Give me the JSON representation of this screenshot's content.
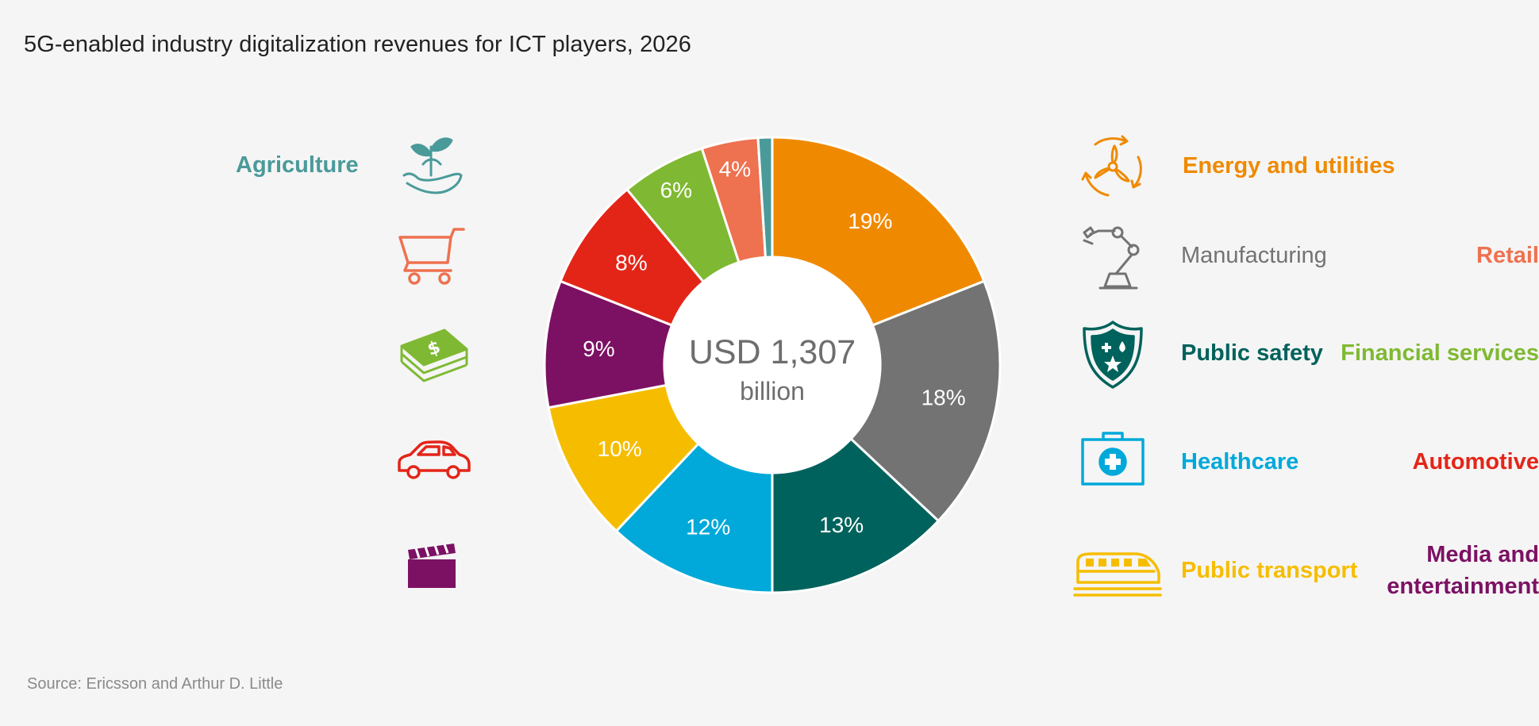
{
  "title": "5G-enabled industry digitalization revenues for ICT players, 2026",
  "source": "Source: Ericsson and Arthur D. Little",
  "center": {
    "amount": "USD 1,307",
    "unit": "billion"
  },
  "chart_data": {
    "type": "pie",
    "title": "5G-enabled industry digitalization revenues for ICT players, 2026",
    "total_label": "USD 1,307 billion",
    "slices": [
      {
        "name": "Energy and utilities",
        "value": 19,
        "label": "19%",
        "color": "#ef8a00"
      },
      {
        "name": "Manufacturing",
        "value": 18,
        "label": "18%",
        "color": "#737373"
      },
      {
        "name": "Public safety",
        "value": 13,
        "label": "13%",
        "color": "#00625c"
      },
      {
        "name": "Healthcare",
        "value": 12,
        "label": "12%",
        "color": "#00a9d9"
      },
      {
        "name": "Public transport",
        "value": 10,
        "label": "10%",
        "color": "#f6bd00"
      },
      {
        "name": "Media and entertainment",
        "value": 9,
        "label": "9%",
        "color": "#7c1163"
      },
      {
        "name": "Automotive",
        "value": 8,
        "label": "8%",
        "color": "#e32518"
      },
      {
        "name": "Financial services",
        "value": 6,
        "label": "6%",
        "color": "#7fb933"
      },
      {
        "name": "Retail",
        "value": 4,
        "label": "4%",
        "color": "#ee7150"
      },
      {
        "name": "Agriculture",
        "value": 1,
        "label": "",
        "color": "#4b9a9a"
      }
    ]
  },
  "legend": {
    "left": [
      {
        "label": "Agriculture",
        "color": "#4b9a9a",
        "icon": "plant-hand-icon"
      },
      {
        "label": "Retail",
        "color": "#ee7150",
        "icon": "shopping-cart-icon"
      },
      {
        "label": "Financial services",
        "color": "#7fb933",
        "icon": "money-stack-icon"
      },
      {
        "label": "Automotive",
        "color": "#e32518",
        "icon": "car-icon"
      },
      {
        "label_line1": "Media and",
        "label_line2": "entertainment",
        "color": "#7c1163",
        "icon": "clapperboard-icon"
      }
    ],
    "right": [
      {
        "label": "Energy and utilities",
        "color": "#ef8a00",
        "icon": "wind-turbine-recycle-icon"
      },
      {
        "label": "Manufacturing",
        "color": "#737373",
        "icon": "robot-arm-icon"
      },
      {
        "label": "Public safety",
        "color": "#00625c",
        "icon": "shield-icon"
      },
      {
        "label": "Healthcare",
        "color": "#00a9d9",
        "icon": "first-aid-kit-icon"
      },
      {
        "label": "Public transport",
        "color": "#f6bd00",
        "icon": "train-icon"
      }
    ]
  }
}
